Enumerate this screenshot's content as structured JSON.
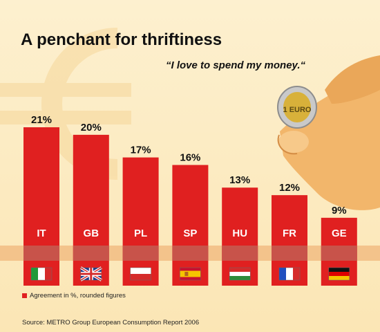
{
  "title": "A penchant for thriftiness",
  "quote": "“I love to spend my money.“",
  "legend_note": "Agreement in %, rounded figures",
  "source": "Source: METRO Group European Consumption Report 2006",
  "colors": {
    "bar": "#e02020",
    "band": "#c8534a",
    "background": "#fbe9bf"
  },
  "decorations": {
    "background_symbol": "euro-sign-icon",
    "illustration": "hand-holding-euro-coin-icon",
    "coin_text": "1 EURO"
  },
  "chart_data": {
    "type": "bar",
    "title": "A penchant for thriftiness",
    "subtitle": "“I love to spend my money.“",
    "categories": [
      "IT",
      "GB",
      "PL",
      "SP",
      "HU",
      "FR",
      "GE"
    ],
    "values": [
      21,
      20,
      17,
      16,
      13,
      12,
      9
    ],
    "value_labels": [
      "21%",
      "20%",
      "17%",
      "16%",
      "13%",
      "12%",
      "9%"
    ],
    "flags": [
      "flag-italy-icon",
      "flag-uk-icon",
      "flag-poland-icon",
      "flag-spain-icon",
      "flag-hungary-icon",
      "flag-france-icon",
      "flag-germany-icon"
    ],
    "unit": "%",
    "ylim": [
      0,
      21
    ],
    "grid": false,
    "legend": "bottom-left"
  }
}
